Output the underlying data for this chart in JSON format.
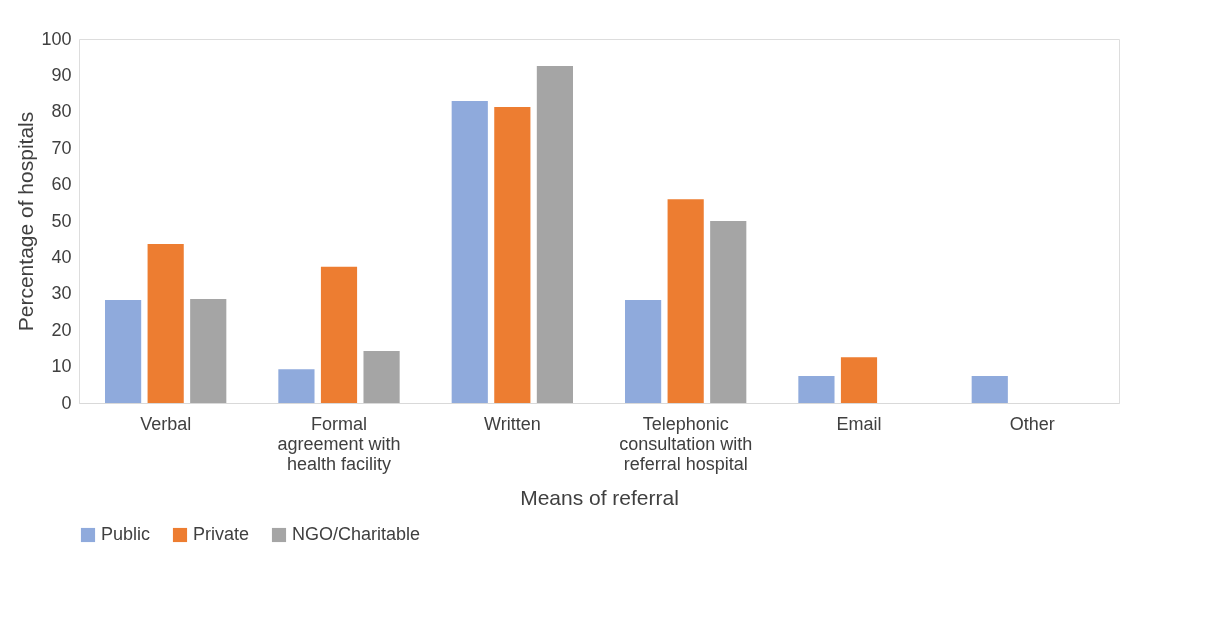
{
  "chart_data": {
    "type": "bar",
    "xlabel": "Means of referral",
    "ylabel": "Percentage of hospitals",
    "categories": [
      "Verbal",
      "Formal\nagreement with\nhealth facility",
      "Written",
      "Telephonic\nconsultation with\nreferral hospital",
      "Email",
      "Other"
    ],
    "series": [
      {
        "name": "Public",
        "color": "#8faadc",
        "values": [
          28.3,
          9.3,
          83,
          28.3,
          7.4,
          7.4
        ]
      },
      {
        "name": "Private",
        "color": "#ed7d31",
        "values": [
          43.7,
          37.4,
          81.3,
          56,
          12.6,
          0
        ]
      },
      {
        "name": "NGO/Charitable",
        "color": "#a5a5a5",
        "values": [
          28.6,
          14.3,
          92.6,
          50,
          0,
          0
        ]
      }
    ],
    "ylim": [
      0,
      100
    ],
    "yticks": [
      0,
      10,
      20,
      30,
      40,
      50,
      60,
      70,
      80,
      90,
      100
    ],
    "grid": false,
    "legend": "bottom"
  }
}
